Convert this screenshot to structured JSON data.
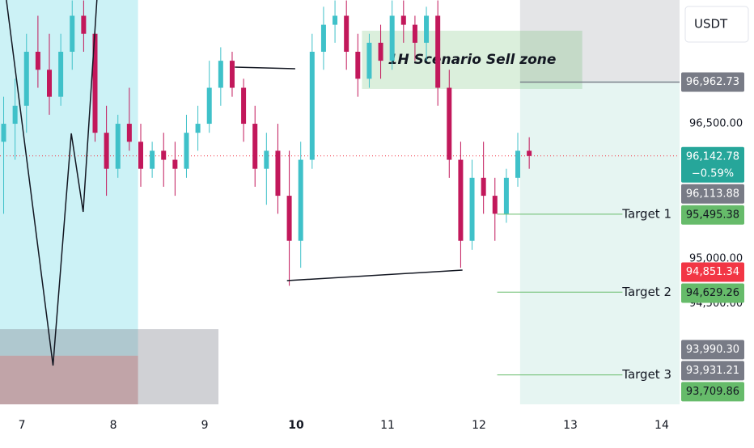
{
  "chart_data": {
    "type": "candlestick",
    "currency": "USDT",
    "xlim": [
      6.76,
      14.195
    ],
    "xticks": [
      7,
      8,
      9,
      10,
      11,
      12,
      13,
      14
    ],
    "bold_xtick": 10,
    "ylim": [
      93293,
      97875
    ],
    "yticks": [
      {
        "value": 96500,
        "label": "96,500.00"
      },
      {
        "value": 95000,
        "label": "95,000.00"
      },
      {
        "value": 94500,
        "label": "94,500.00"
      }
    ],
    "up_color": "#3fc1c9",
    "down_color": "#c2185b",
    "x": [
      6.8,
      6.925,
      7.05,
      7.175,
      7.3,
      7.425,
      7.55,
      7.675,
      7.8,
      7.925,
      8.05,
      8.175,
      8.3,
      8.425,
      8.55,
      8.675,
      8.8,
      8.925,
      9.05,
      9.175,
      9.3,
      9.425,
      9.55,
      9.675,
      9.8,
      9.925,
      10.05,
      10.175,
      10.3,
      10.425,
      10.55,
      10.675,
      10.8,
      10.925,
      11.05,
      11.175,
      11.3,
      11.425,
      11.55,
      11.675,
      11.8,
      11.925,
      12.05,
      12.175,
      12.3,
      12.425,
      12.55
    ],
    "open": [
      96300,
      96500,
      96700,
      97300,
      97100,
      96800,
      97300,
      97700,
      97500,
      96400,
      96000,
      96500,
      96300,
      96000,
      96200,
      96100,
      96000,
      96400,
      96500,
      96900,
      97200,
      96900,
      96500,
      96000,
      96200,
      95700,
      95200,
      96100,
      97300,
      97600,
      97700,
      97300,
      97000,
      97400,
      97200,
      97700,
      97600,
      97400,
      97700,
      96900,
      96100,
      95200,
      95900,
      95700,
      95500,
      95900,
      96200
    ],
    "high": [
      96800,
      97000,
      97500,
      97700,
      97500,
      97500,
      97870,
      97870,
      97600,
      96700,
      96600,
      96900,
      96500,
      96300,
      96400,
      96300,
      96600,
      96700,
      97200,
      97350,
      97300,
      97000,
      96700,
      96400,
      96500,
      96200,
      96300,
      97500,
      97800,
      97870,
      97870,
      97500,
      97500,
      97600,
      97870,
      97870,
      97700,
      97800,
      97870,
      97100,
      96300,
      96100,
      96300,
      95900,
      96000,
      96400,
      96350
    ],
    "low": [
      95500,
      96100,
      96400,
      96900,
      96600,
      96700,
      97100,
      97300,
      96300,
      95700,
      95900,
      96200,
      95800,
      95900,
      95800,
      95700,
      95900,
      96200,
      96400,
      96700,
      96800,
      96300,
      95800,
      95600,
      95500,
      94700,
      94900,
      96000,
      97100,
      97400,
      97100,
      96800,
      96900,
      97000,
      97100,
      97400,
      97200,
      97200,
      96700,
      95900,
      94900,
      95100,
      95500,
      95200,
      95400,
      95800,
      96000
    ],
    "close": [
      96500,
      96700,
      97300,
      97100,
      96800,
      97300,
      97700,
      97500,
      96400,
      96000,
      96500,
      96300,
      96000,
      96200,
      96100,
      96000,
      96400,
      96500,
      96900,
      97200,
      96900,
      96500,
      96000,
      96200,
      95700,
      95200,
      96100,
      97300,
      97600,
      97700,
      97300,
      97000,
      97400,
      97200,
      97700,
      97600,
      97400,
      97700,
      96900,
      96100,
      95200,
      95900,
      95700,
      95500,
      95900,
      96200,
      96142.78
    ],
    "last_price": {
      "value": 96142.78,
      "label": "96,142.78",
      "change": "−0.59%",
      "color": "#26a69a"
    },
    "price_labels": [
      {
        "value": 96962.73,
        "label": "96,962.73",
        "color": "#787b86",
        "text_color": "#ffffff",
        "line": true
      },
      {
        "value": 96113.88,
        "label": "96,113.88",
        "color": "#787b86",
        "text_color": "#ffffff",
        "line": false
      },
      {
        "value": 94851.34,
        "label": "94,851.34",
        "color": "#f23645",
        "text_color": "#ffffff",
        "line": false
      },
      {
        "value": 93990.3,
        "label": "93,990.30",
        "color": "#787b86",
        "text_color": "#ffffff",
        "line": false
      },
      {
        "value": 93931.21,
        "label": "93,931.21",
        "color": "#787b86",
        "text_color": "#ffffff",
        "line": false
      }
    ],
    "targets": [
      {
        "name": "Target 1",
        "value": 95495.38,
        "label": "95,495.38",
        "x": [
          12.2,
          13.57
        ]
      },
      {
        "name": "Target 2",
        "value": 94629.26,
        "label": "94,629.26",
        "x": [
          12.2,
          13.57
        ]
      },
      {
        "name": "Target 3",
        "value": 93709.86,
        "label": "93,709.86",
        "x": [
          12.2,
          13.57
        ]
      }
    ],
    "target_color": "#66bb6a",
    "zones": [
      {
        "x": [
          6.76,
          8.27
        ],
        "y": [
          93923,
          97875
        ],
        "color": "rgba(0,188,212,0.2)"
      },
      {
        "x": [
          6.76,
          8.27
        ],
        "y": [
          93383,
          93923
        ],
        "color": "rgba(183,28,28,0.3)"
      },
      {
        "x": [
          6.76,
          9.15
        ],
        "y": [
          93383,
          94218
        ],
        "color": "rgba(120,123,134,0.35)"
      },
      {
        "x": [
          12.45,
          14.195
        ],
        "y": [
          96977,
          97875
        ],
        "color": "rgba(120,123,134,0.2)"
      },
      {
        "x": [
          12.45,
          14.195
        ],
        "y": [
          93383,
          96977
        ],
        "color": "rgba(8,153,129,0.1)"
      },
      {
        "x": [
          10.72,
          13.13
        ],
        "y": [
          96887,
          97534
        ],
        "color": "rgba(76,175,80,0.2)",
        "label": "1H Scenario Sell zone"
      }
    ],
    "drawings": [
      {
        "x": [
          6.83,
          7.34,
          7.54,
          7.67,
          7.82
        ],
        "y": [
          97875,
          93814,
          96393,
          95521,
          97875
        ]
      },
      {
        "x": [
          9.33,
          9.99
        ],
        "y": [
          97129,
          97111
        ]
      },
      {
        "x": [
          9.9,
          11.82
        ],
        "y": [
          94757,
          94874
        ]
      }
    ]
  }
}
